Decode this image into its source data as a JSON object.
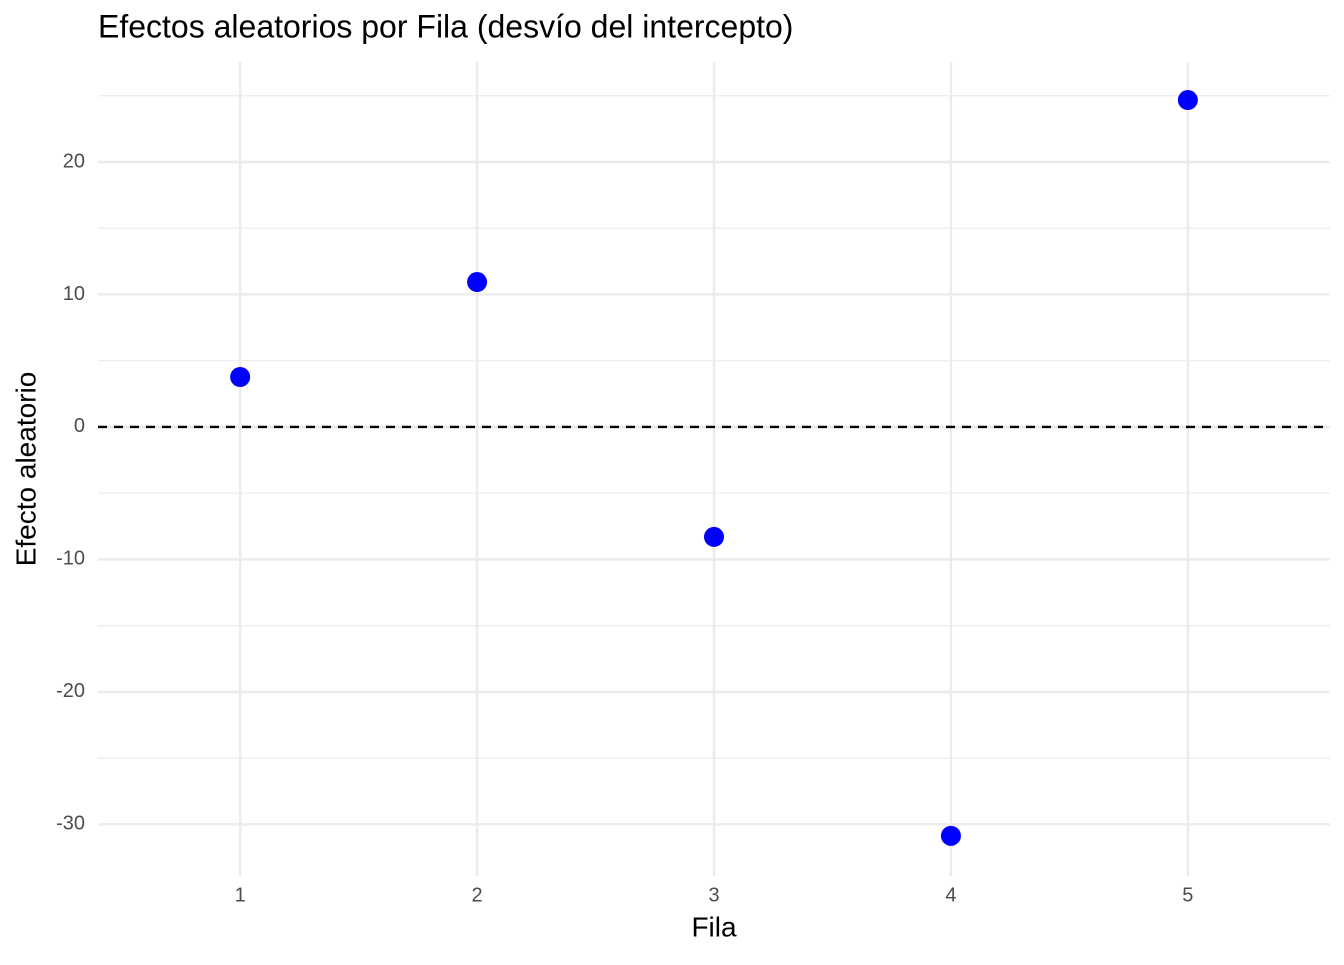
{
  "chart_data": {
    "type": "scatter",
    "title": "Efectos aleatorios por Fila (desvío del intercepto)",
    "x_label": "Fila",
    "y_label": "Efecto aleatorio",
    "x": [
      1,
      2,
      3,
      4,
      5
    ],
    "values": [
      3.77,
      10.94,
      -8.3,
      -30.87,
      24.68
    ],
    "color": "#0000ff",
    "xlim": [
      0.4,
      5.6
    ],
    "xticks": [
      1,
      2,
      3,
      4,
      5
    ],
    "ylim": [
      -33.9,
      27.55
    ],
    "yticks": [
      -30,
      -20,
      -10,
      0,
      10,
      20
    ],
    "minor_yticks": [
      -25,
      -15,
      -5,
      5,
      15,
      25
    ],
    "grid": true,
    "hline": 0
  }
}
